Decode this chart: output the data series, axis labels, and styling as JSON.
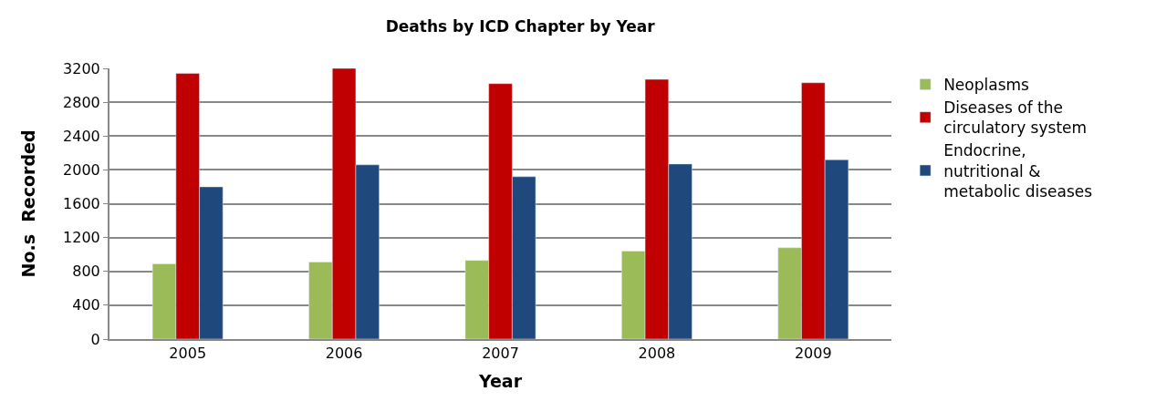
{
  "chart_data": {
    "type": "bar",
    "title": "Deaths by ICD Chapter by Year",
    "xlabel": "Year",
    "ylabel": "No.s  Recorded",
    "categories": [
      "2005",
      "2006",
      "2007",
      "2008",
      "2009"
    ],
    "series": [
      {
        "name": "Neoplasms",
        "color": "#9bbb59",
        "values": [
          890,
          910,
          930,
          1040,
          1080
        ]
      },
      {
        "name": "Diseases of the circulatory system",
        "color": "#c00000",
        "values": [
          3140,
          3200,
          3020,
          3070,
          3030
        ]
      },
      {
        "name": "Endocrine, nutritional & metabolic diseases",
        "color": "#1f497d",
        "values": [
          1800,
          2060,
          1920,
          2070,
          2120
        ]
      }
    ],
    "ylim": [
      0,
      3200
    ],
    "yticks": [
      0,
      400,
      800,
      1200,
      1600,
      2000,
      2400,
      2800,
      3200
    ],
    "grid": "y",
    "legend": "right"
  }
}
